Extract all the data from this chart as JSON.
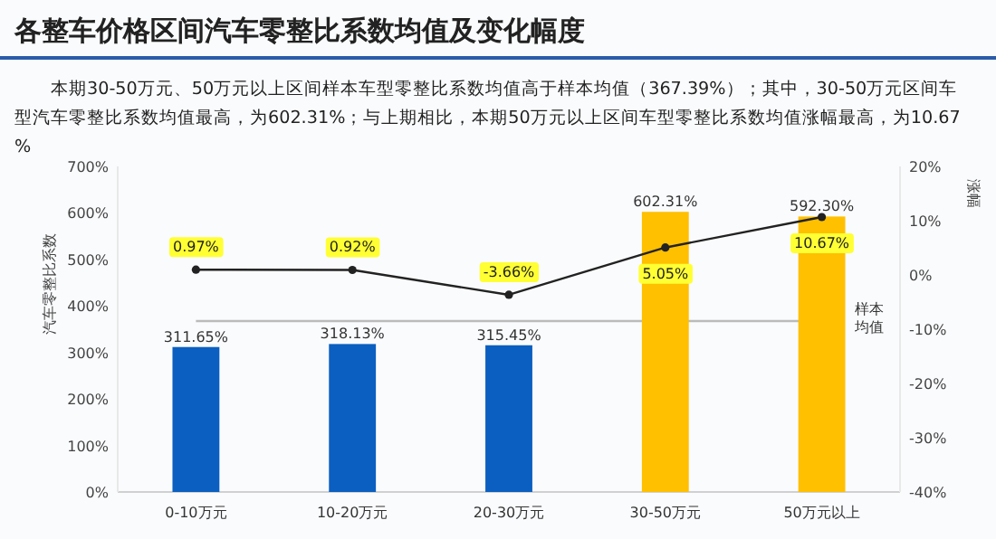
{
  "chart_data": {
    "type": "bar",
    "title": "各整车价格区间汽车零整比系数均值及变化幅度",
    "subtitle": "本期30-50万元、50万元以上区间样本车型零整比系数均值高于样本均值（367.39%）；其中，30-50万元区间车型汽车零整比系数均值最高，为602.31%；与上期相比，本期50万元以上区间车型零整比系数均值涨幅最高，为10.67%",
    "ylabel": "汽车零整比系数",
    "y2label": "涨幅",
    "categories": [
      "0-10万元",
      "10-20万元",
      "20-30万元",
      "30-50万元",
      "50万元以上"
    ],
    "ylim": [
      0,
      700
    ],
    "yticks": [
      {
        "value": 0,
        "label": "0%"
      },
      {
        "value": 100,
        "label": "100%"
      },
      {
        "value": 200,
        "label": "200%"
      },
      {
        "value": 300,
        "label": "300%"
      },
      {
        "value": 400,
        "label": "400%"
      },
      {
        "value": 500,
        "label": "500%"
      },
      {
        "value": 600,
        "label": "600%"
      },
      {
        "value": 700,
        "label": "700%"
      }
    ],
    "y2lim": [
      -40,
      20
    ],
    "y2ticks": [
      {
        "value": -40,
        "label": "-40%"
      },
      {
        "value": -30,
        "label": "-30%"
      },
      {
        "value": -20,
        "label": "-20%"
      },
      {
        "value": -10,
        "label": "-10%"
      },
      {
        "value": 0,
        "label": "0%"
      },
      {
        "value": 10,
        "label": "10%"
      },
      {
        "value": 20,
        "label": "20%"
      }
    ],
    "series": [
      {
        "values": [
          311.65,
          318.13,
          315.45,
          602.31,
          592.3
        ],
        "colors": [
          "#0a5fc0",
          "#0a5fc0",
          "#0a5fc0",
          "#ffc000",
          "#ffc000"
        ],
        "value_labels": [
          "311.65%",
          "318.13%",
          "315.45%",
          "602.31%",
          "592.30%"
        ]
      },
      {
        "type": "line",
        "axis": "y2",
        "color": "#222222",
        "marker": "circle",
        "values": [
          0.97,
          0.92,
          -3.66,
          5.05,
          10.67
        ],
        "value_labels": [
          "0.97%",
          "0.92%",
          "-3.66%",
          "5.05%",
          "10.67%"
        ]
      }
    ],
    "ref_lines": [
      {
        "axis": "y",
        "value": 367.39,
        "label": "样本均值",
        "color": "#bbbbbb"
      }
    ]
  }
}
